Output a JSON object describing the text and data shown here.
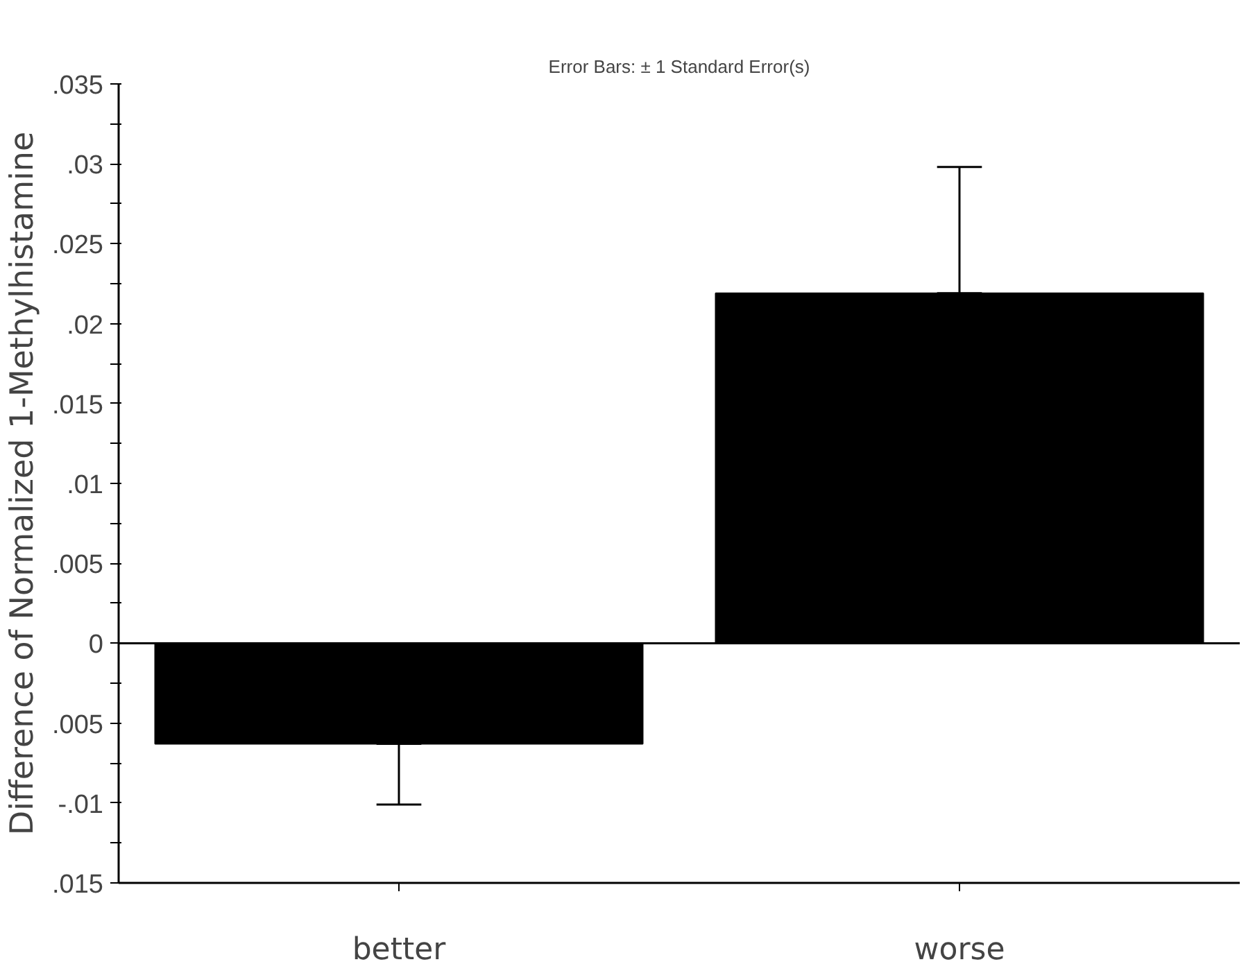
{
  "chart_data": {
    "type": "bar",
    "title": "Error Bars: ± 1 Standard Error(s)",
    "ylabel": "Difference of Normalized 1-Methylhistamine",
    "categories": [
      "better",
      "worse"
    ],
    "values": [
      -0.0063,
      0.0219
    ],
    "errors": [
      [
        -0.0101,
        -0.0063
      ],
      [
        0.0219,
        0.0298
      ]
    ],
    "color": "#000000",
    "ylim": [
      -0.015,
      0.035
    ],
    "yticks": [
      {
        "value": -0.015,
        "label": ".015"
      },
      {
        "value": -0.0125,
        "label": null
      },
      {
        "value": -0.01,
        "label": "-.01"
      },
      {
        "value": -0.0075,
        "label": null
      },
      {
        "value": -0.005,
        "label": ".005"
      },
      {
        "value": -0.0025,
        "label": null
      },
      {
        "value": 0,
        "label": "0"
      },
      {
        "value": 0.0025,
        "label": null
      },
      {
        "value": 0.005,
        "label": ".005"
      },
      {
        "value": 0.0075,
        "label": null
      },
      {
        "value": 0.01,
        "label": ".01"
      },
      {
        "value": 0.0125,
        "label": null
      },
      {
        "value": 0.015,
        "label": ".015"
      },
      {
        "value": 0.0175,
        "label": null
      },
      {
        "value": 0.02,
        "label": ".02"
      },
      {
        "value": 0.0225,
        "label": null
      },
      {
        "value": 0.025,
        "label": ".025"
      },
      {
        "value": 0.0275,
        "label": null
      },
      {
        "value": 0.03,
        "label": ".03"
      },
      {
        "value": 0.0325,
        "label": null
      },
      {
        "value": 0.035,
        "label": ".035"
      }
    ]
  }
}
